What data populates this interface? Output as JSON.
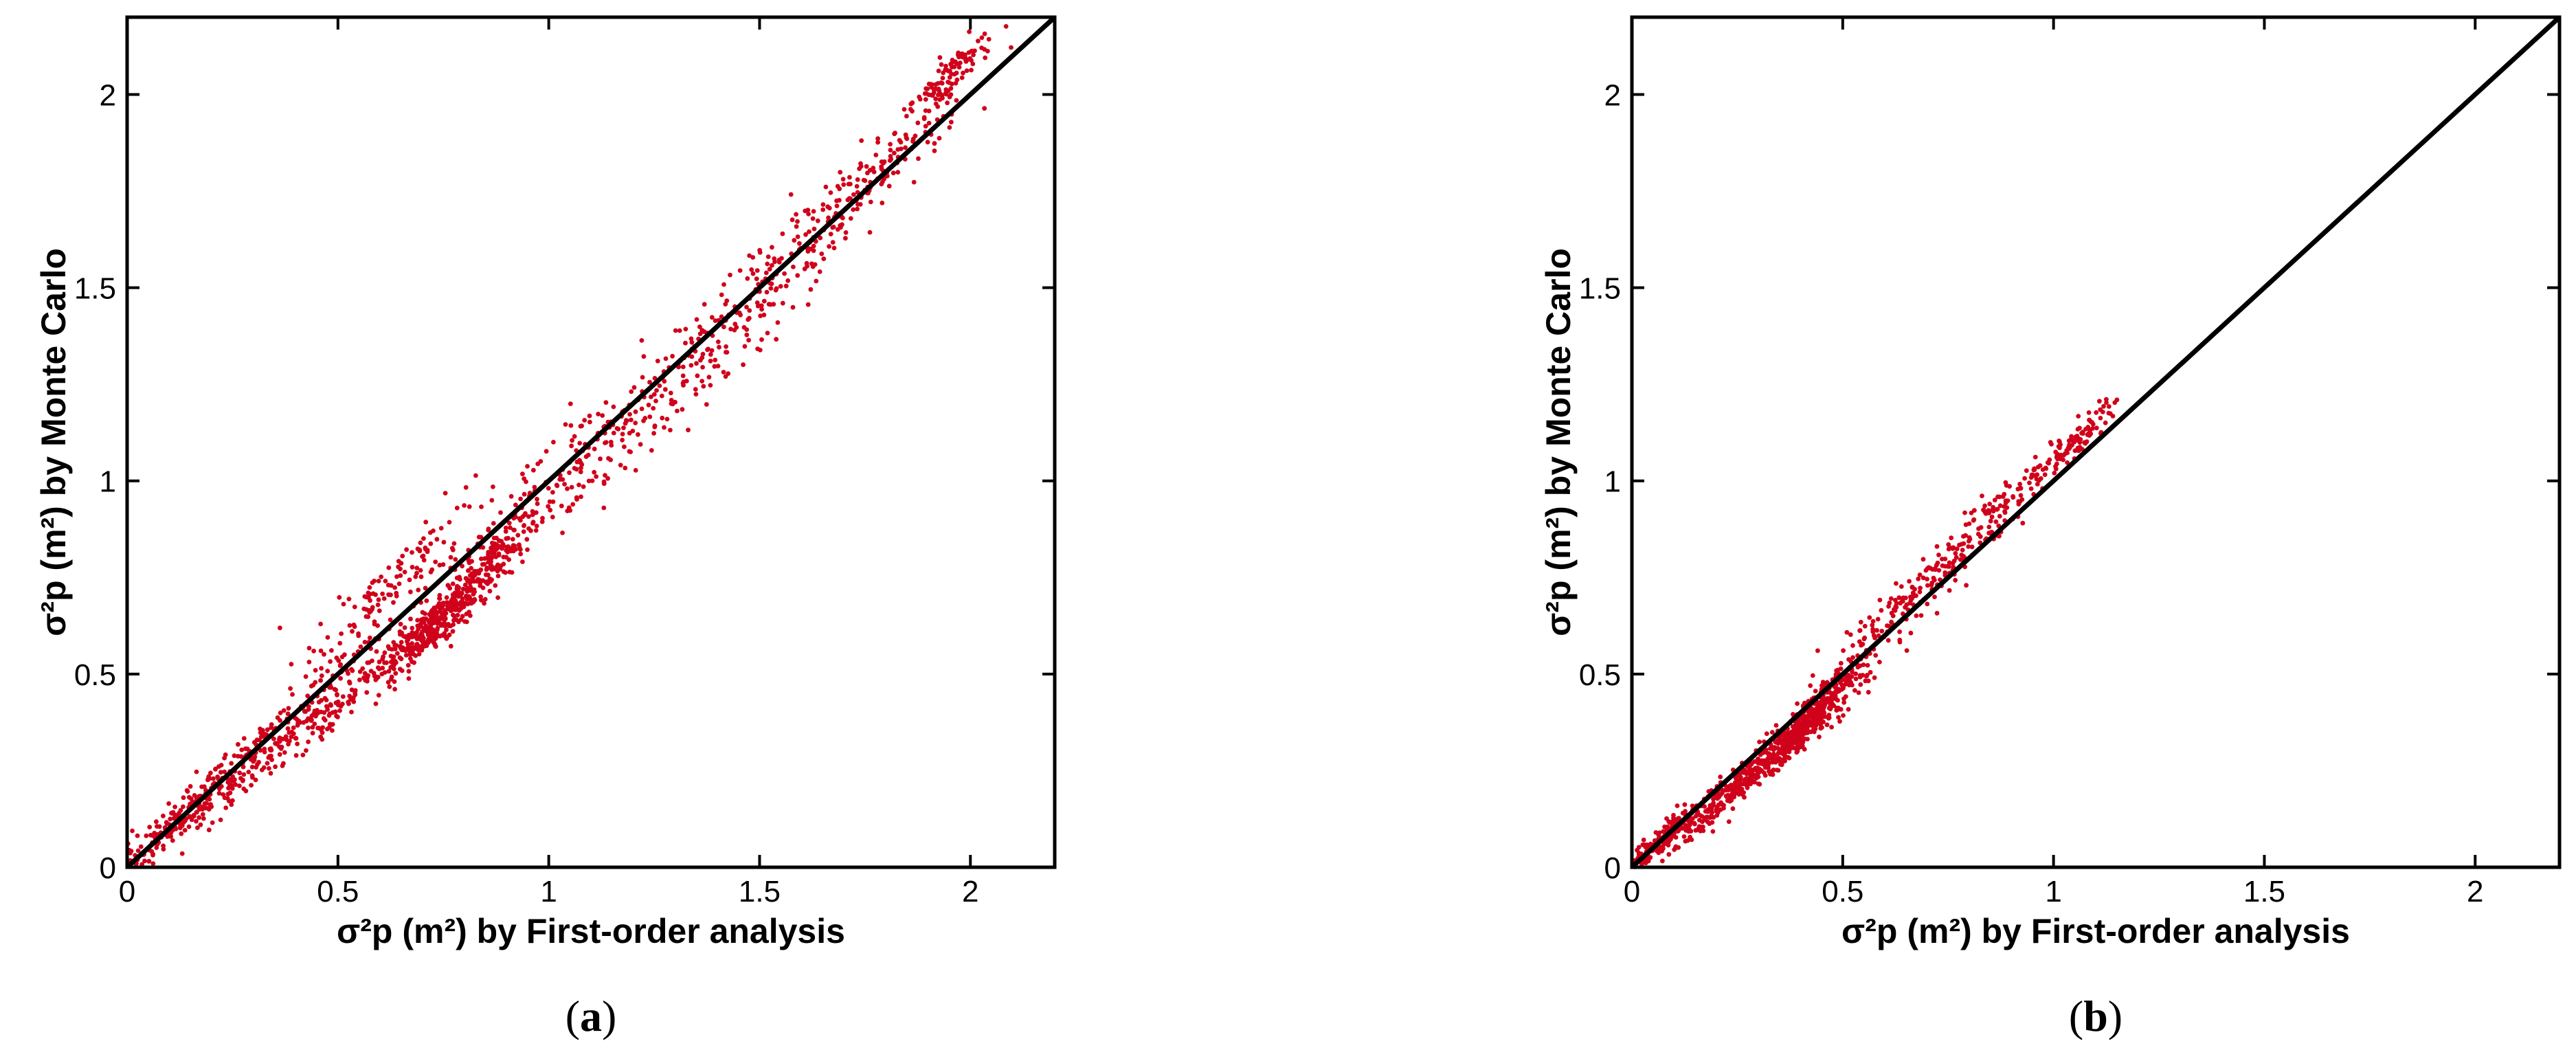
{
  "figure": {
    "chart_data": [
      {
        "type": "scatter",
        "panel_label": "a",
        "xlabel": "σ²p (m²) by First-order analysis",
        "ylabel": "σ²p (m²) by Monte Carlo",
        "xlim": [
          0,
          2.2
        ],
        "ylim": [
          0,
          2.2
        ],
        "xticks": [
          "0",
          "0.5",
          "1",
          "1.5",
          "2"
        ],
        "yticks": [
          "0",
          "0.5",
          "1",
          "1.5",
          "2"
        ],
        "grid": false,
        "reference_line": {
          "x": [
            0,
            2.2
          ],
          "y": [
            0,
            2.2
          ],
          "color": "#000000"
        },
        "series_color": "#d0021b",
        "clusters": [
          {
            "xc": 0.08,
            "yc": 0.08,
            "sx": 0.06,
            "sy": 0.05,
            "n": 140
          },
          {
            "xc": 0.25,
            "yc": 0.24,
            "sx": 0.1,
            "sy": 0.08,
            "n": 180
          },
          {
            "xc": 0.45,
            "yc": 0.4,
            "sx": 0.1,
            "sy": 0.09,
            "n": 200
          },
          {
            "xc": 0.72,
            "yc": 0.62,
            "sx": 0.07,
            "sy": 0.08,
            "n": 360
          },
          {
            "xc": 0.62,
            "yc": 0.72,
            "sx": 0.1,
            "sy": 0.1,
            "n": 120
          },
          {
            "xc": 0.85,
            "yc": 0.78,
            "sx": 0.06,
            "sy": 0.07,
            "n": 160
          },
          {
            "xc": 1.05,
            "yc": 1.02,
            "sx": 0.14,
            "sy": 0.12,
            "n": 160
          },
          {
            "xc": 1.3,
            "yc": 1.25,
            "sx": 0.14,
            "sy": 0.14,
            "n": 150
          },
          {
            "xc": 1.55,
            "yc": 1.55,
            "sx": 0.12,
            "sy": 0.12,
            "n": 130
          },
          {
            "xc": 1.78,
            "yc": 1.8,
            "sx": 0.1,
            "sy": 0.1,
            "n": 130
          },
          {
            "xc": 1.95,
            "yc": 2.05,
            "sx": 0.05,
            "sy": 0.06,
            "n": 110
          }
        ]
      },
      {
        "type": "scatter",
        "panel_label": "b",
        "xlabel": "σ²p (m²) by First-order analysis",
        "ylabel": "σ²p (m²) by Monte Carlo",
        "xlim": [
          0,
          2.2
        ],
        "ylim": [
          0,
          2.2
        ],
        "xticks": [
          "0",
          "0.5",
          "1",
          "1.5",
          "2"
        ],
        "yticks": [
          "0",
          "0.5",
          "1",
          "1.5",
          "2"
        ],
        "grid": false,
        "reference_line": {
          "x": [
            0,
            2.2
          ],
          "y": [
            0,
            2.2
          ],
          "color": "#000000"
        },
        "series_color": "#d0021b",
        "clusters": [
          {
            "xc": 0.06,
            "yc": 0.06,
            "sx": 0.04,
            "sy": 0.04,
            "n": 160
          },
          {
            "xc": 0.2,
            "yc": 0.17,
            "sx": 0.06,
            "sy": 0.05,
            "n": 200
          },
          {
            "xc": 0.38,
            "yc": 0.33,
            "sx": 0.06,
            "sy": 0.05,
            "n": 360
          },
          {
            "xc": 0.45,
            "yc": 0.43,
            "sx": 0.05,
            "sy": 0.06,
            "n": 220
          },
          {
            "xc": 0.65,
            "yc": 0.68,
            "sx": 0.08,
            "sy": 0.09,
            "n": 150
          },
          {
            "xc": 0.85,
            "yc": 0.9,
            "sx": 0.07,
            "sy": 0.07,
            "n": 120
          },
          {
            "xc": 1.05,
            "yc": 1.1,
            "sx": 0.05,
            "sy": 0.05,
            "n": 110
          }
        ]
      }
    ]
  }
}
